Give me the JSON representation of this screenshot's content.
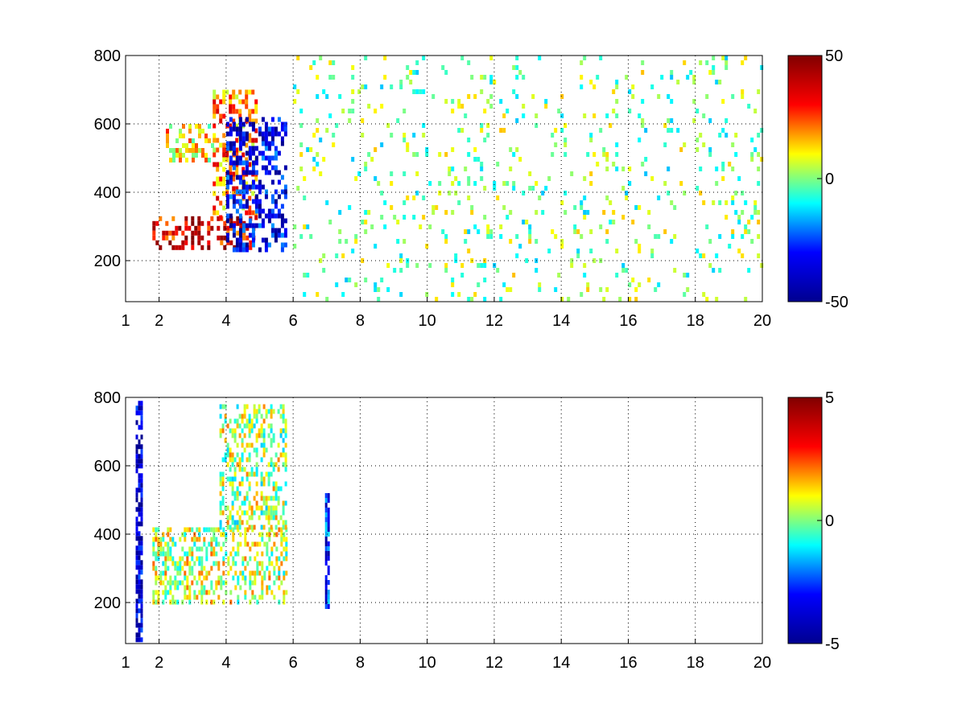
{
  "figure": {
    "colormap": "jet",
    "colormap_stops": [
      "#00008f",
      "#0000ff",
      "#00ffff",
      "#ffff00",
      "#ff0000",
      "#800000"
    ]
  },
  "chart_data": [
    {
      "type": "heatmap",
      "title": "",
      "xlabel": "",
      "ylabel": "",
      "xlim": [
        1,
        20
      ],
      "ylim": [
        80,
        800
      ],
      "grid": true,
      "x_ticks": [
        1,
        2,
        4,
        6,
        8,
        10,
        12,
        14,
        16,
        18,
        20
      ],
      "y_ticks": [
        200,
        400,
        600,
        800
      ],
      "colorbar": {
        "clim": [
          -50,
          50
        ],
        "ticks": [
          50,
          0,
          -50
        ],
        "position": "right"
      },
      "regions": [
        {
          "desc": "main curved band",
          "x": [
            1.8,
            4.8
          ],
          "y": [
            240,
            330
          ],
          "value": 35
        },
        {
          "desc": "upper band",
          "x": [
            3.6,
            4.9
          ],
          "y": [
            330,
            700
          ],
          "value": 20
        },
        {
          "desc": "negative band",
          "x": [
            4.0,
            5.8
          ],
          "y": [
            230,
            620
          ],
          "value": -35
        },
        {
          "desc": "faint arc",
          "x": [
            2.2,
            3.6
          ],
          "y": [
            500,
            600
          ],
          "value": 12
        },
        {
          "desc": "sparse noise",
          "x": [
            6,
            20
          ],
          "y": [
            80,
            800
          ],
          "value": 0
        }
      ]
    },
    {
      "type": "heatmap",
      "title": "",
      "xlabel": "",
      "ylabel": "",
      "xlim": [
        1,
        20
      ],
      "ylim": [
        80,
        800
      ],
      "grid": true,
      "x_ticks": [
        1,
        2,
        4,
        6,
        8,
        10,
        12,
        14,
        16,
        18,
        20
      ],
      "y_ticks": [
        200,
        400,
        600,
        800
      ],
      "colorbar": {
        "clim": [
          -5,
          5
        ],
        "ticks": [
          5,
          0,
          -5
        ],
        "position": "right"
      },
      "regions": [
        {
          "desc": "main curved band",
          "x": [
            1.8,
            5.8
          ],
          "y": [
            200,
            420
          ],
          "value": 0.5
        },
        {
          "desc": "upper band",
          "x": [
            3.8,
            5.8
          ],
          "y": [
            420,
            780
          ],
          "value": 0.3
        },
        {
          "desc": "line near x=1.4",
          "x": [
            1.3,
            1.45
          ],
          "y": [
            90,
            790
          ],
          "value": -4
        },
        {
          "desc": "line near x=7",
          "x": [
            6.95,
            7.05
          ],
          "y": [
            190,
            520
          ],
          "value": -3
        }
      ]
    }
  ]
}
